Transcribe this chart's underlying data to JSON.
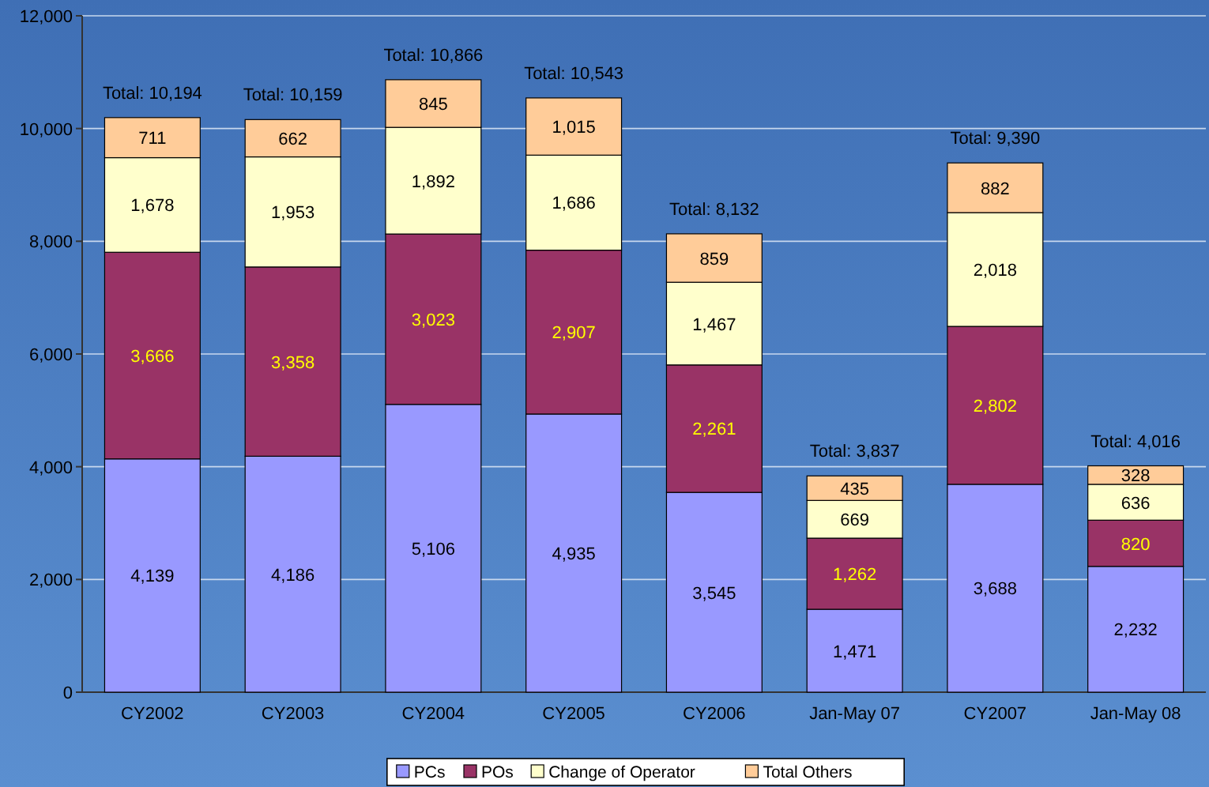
{
  "chart_data": {
    "type": "bar",
    "stacked": true,
    "categories": [
      "CY2002",
      "CY2003",
      "CY2004",
      "CY2005",
      "CY2006",
      "Jan-May 07",
      "CY2007",
      "Jan-May 08"
    ],
    "series": [
      {
        "name": "PCs",
        "color": "#9999ff",
        "values": [
          4139,
          4186,
          5106,
          4935,
          3545,
          1471,
          3688,
          2232
        ],
        "value_labels": [
          "4,139",
          "4,186",
          "5,106",
          "4,935",
          "3,545",
          "1,471",
          "3,688",
          "2,232"
        ]
      },
      {
        "name": "POs",
        "color": "#993366",
        "values": [
          3666,
          3358,
          3023,
          2907,
          2261,
          1262,
          2802,
          820
        ],
        "value_labels": [
          "3,666",
          "3,358",
          "3,023",
          "2,907",
          "2,261",
          "1,262",
          "2,802",
          "820"
        ]
      },
      {
        "name": "Change of Operator",
        "color": "#ffffcc",
        "values": [
          1678,
          1953,
          1892,
          1686,
          1467,
          669,
          2018,
          636
        ],
        "value_labels": [
          "1,678",
          "1,953",
          "1,892",
          "1,686",
          "1,467",
          "669",
          "2,018",
          "636"
        ]
      },
      {
        "name": "Total Others",
        "color": "#ffcc99",
        "values": [
          711,
          662,
          845,
          1015,
          859,
          435,
          882,
          328
        ],
        "value_labels": [
          "711",
          "662",
          "845",
          "1,015",
          "859",
          "435",
          "882",
          "328"
        ]
      }
    ],
    "totals": [
      "Total: 10,194",
      "Total: 10,159",
      "Total: 10,866",
      "Total: 10,543",
      "Total: 8,132",
      "Total: 3,837",
      "Total: 9,390",
      "Total: 4,016"
    ],
    "ylim": [
      0,
      12000
    ],
    "yticks": [
      {
        "value": 0,
        "label": "0"
      },
      {
        "value": 2000,
        "label": "2,000"
      },
      {
        "value": 4000,
        "label": "4,000"
      },
      {
        "value": 6000,
        "label": "6,000"
      },
      {
        "value": 8000,
        "label": "8,000"
      },
      {
        "value": 10000,
        "label": "10,000"
      },
      {
        "value": 12000,
        "label": "12,000"
      }
    ],
    "grid": "y",
    "legend": "bottom"
  }
}
